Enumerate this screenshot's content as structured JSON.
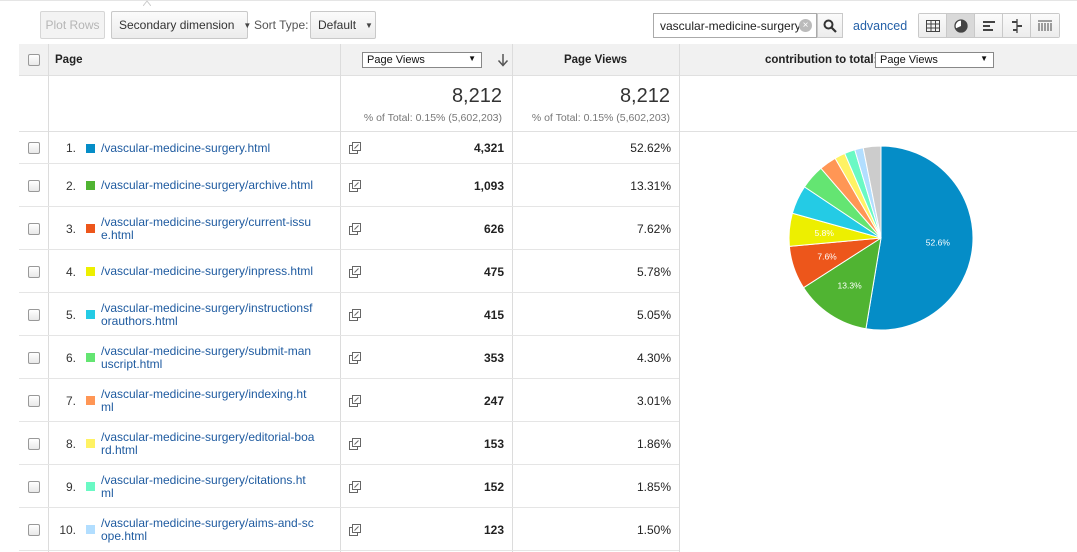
{
  "toolbar": {
    "plot_rows": "Plot Rows",
    "secondary_dimension": "Secondary dimension",
    "sort_type_label": "Sort Type:",
    "sort_type_value": "Default",
    "search_value": "vascular-medicine-surgery",
    "advanced": "advanced"
  },
  "table": {
    "headers": {
      "page": "Page",
      "metric_select": "Page Views",
      "page_views": "Page Views",
      "contribution_label": "contribution to total:",
      "contribution_select": "Page Views"
    },
    "totals": {
      "pv1": "8,212",
      "pv1_sub": "% of Total: 0.15% (5,602,203)",
      "pv2": "8,212",
      "pv2_sub": "% of Total: 0.15% (5,602,203)"
    },
    "rows": [
      {
        "num": "1.",
        "page": "/vascular-medicine-surgery.html",
        "views": "4,321",
        "pct": "52.62%",
        "color": "#058dc7"
      },
      {
        "num": "2.",
        "page": "/vascular-medicine-surgery/archive.html",
        "views": "1,093",
        "pct": "13.31%",
        "color": "#50b432"
      },
      {
        "num": "3.",
        "page": "/vascular-medicine-surgery/current-issue.html",
        "views": "626",
        "pct": "7.62%",
        "color": "#ed561b"
      },
      {
        "num": "4.",
        "page": "/vascular-medicine-surgery/inpress.html",
        "views": "475",
        "pct": "5.78%",
        "color": "#edef00"
      },
      {
        "num": "5.",
        "page": "/vascular-medicine-surgery/instructionsforauthors.html",
        "views": "415",
        "pct": "5.05%",
        "color": "#24cbe5"
      },
      {
        "num": "6.",
        "page": "/vascular-medicine-surgery/submit-manuscript.html",
        "views": "353",
        "pct": "4.30%",
        "color": "#64e572"
      },
      {
        "num": "7.",
        "page": "/vascular-medicine-surgery/indexing.html",
        "views": "247",
        "pct": "3.01%",
        "color": "#ff9655"
      },
      {
        "num": "8.",
        "page": "/vascular-medicine-surgery/editorial-board.html",
        "views": "153",
        "pct": "1.86%",
        "color": "#fff263"
      },
      {
        "num": "9.",
        "page": "/vascular-medicine-surgery/citations.html",
        "views": "152",
        "pct": "1.85%",
        "color": "#6af9c4"
      },
      {
        "num": "10.",
        "page": "/vascular-medicine-surgery/aims-and-scope.html",
        "views": "123",
        "pct": "1.50%",
        "color": "#b2deff"
      }
    ]
  },
  "chart_data": {
    "type": "pie",
    "slices": [
      {
        "value": 52.62,
        "color": "#058dc7",
        "label": "52.6%"
      },
      {
        "value": 13.31,
        "color": "#50b432",
        "label": "13.3%"
      },
      {
        "value": 7.62,
        "color": "#ed561b",
        "label": "7.6%"
      },
      {
        "value": 5.78,
        "color": "#edef00",
        "label": "5.8%"
      },
      {
        "value": 5.05,
        "color": "#24cbe5",
        "label": ""
      },
      {
        "value": 4.3,
        "color": "#64e572",
        "label": ""
      },
      {
        "value": 3.01,
        "color": "#ff9655",
        "label": ""
      },
      {
        "value": 1.86,
        "color": "#fff263",
        "label": ""
      },
      {
        "value": 1.85,
        "color": "#6af9c4",
        "label": ""
      },
      {
        "value": 1.5,
        "color": "#b2deff",
        "label": ""
      },
      {
        "value": 3.1,
        "color": "#cccccc",
        "label": ""
      }
    ]
  }
}
